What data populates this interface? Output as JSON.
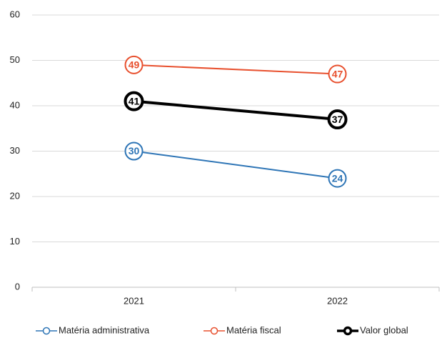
{
  "chart_data": {
    "type": "line",
    "categories": [
      "2021",
      "2022"
    ],
    "series": [
      {
        "name": "Matéria administrativa",
        "color": "#2e75b6",
        "values": [
          30,
          24
        ]
      },
      {
        "name": "Matéria fiscal",
        "color": "#e8502e",
        "values": [
          49,
          47
        ]
      },
      {
        "name": "Valor global",
        "color": "#000000",
        "values": [
          41,
          37
        ]
      }
    ],
    "ylim": [
      0,
      60
    ],
    "yticks": [
      0,
      10,
      20,
      30,
      40,
      50,
      60
    ],
    "grid": true,
    "legend": "bottom"
  }
}
